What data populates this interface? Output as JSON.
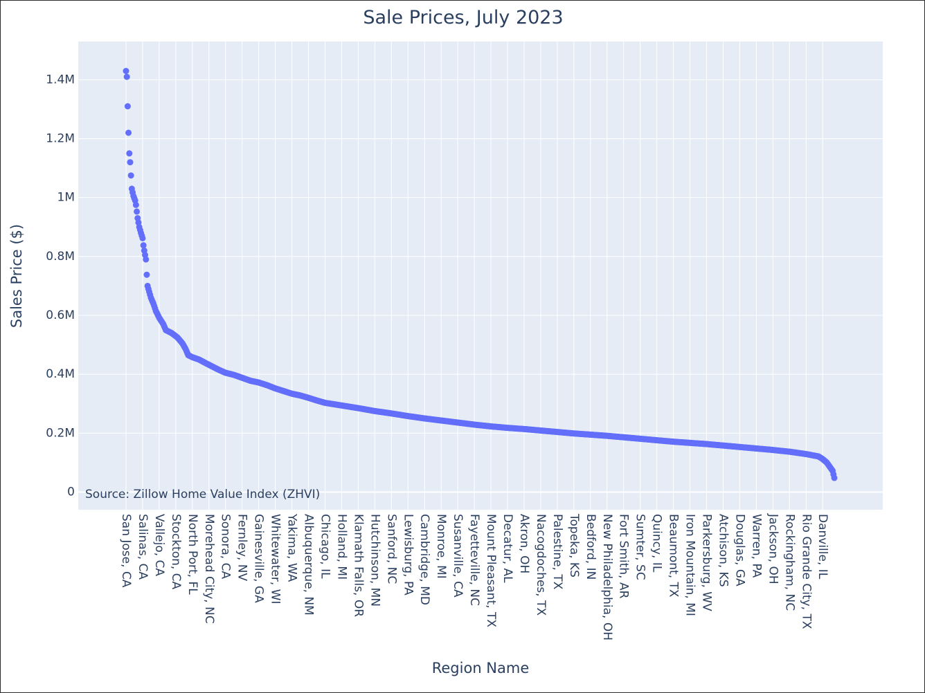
{
  "chart_data": {
    "type": "scatter",
    "title": "Sale Prices, July 2023",
    "xlabel": "Region Name",
    "ylabel": "Sales Price ($)",
    "ylim": [
      -60000,
      1530000
    ],
    "y_ticks": [
      {
        "value": 0,
        "label": "0"
      },
      {
        "value": 200000,
        "label": "0.2M"
      },
      {
        "value": 400000,
        "label": "0.4M"
      },
      {
        "value": 600000,
        "label": "0.6M"
      },
      {
        "value": 800000,
        "label": "0.8M"
      },
      {
        "value": 1000000,
        "label": "1M"
      },
      {
        "value": 1200000,
        "label": "1.2M"
      },
      {
        "value": 1400000,
        "label": "1.4M"
      }
    ],
    "x_tick_labels": [
      "San Jose, CA",
      "Salinas, CA",
      "Vallejo, CA",
      "Stockton, CA",
      "North Port, FL",
      "Morehead City, NC",
      "Sonora, CA",
      "Fernley, NV",
      "Gainesville, GA",
      "Whitewater, WI",
      "Yakima, WA",
      "Albuquerque, NM",
      "Chicago, IL",
      "Holland, MI",
      "Klamath Falls, OR",
      "Hutchinson, MN",
      "Sanford, NC",
      "Lewisburg, PA",
      "Cambridge, MD",
      "Monroe, MI",
      "Susanville, CA",
      "Fayetteville, NC",
      "Mount Pleasant, TX",
      "Decatur, AL",
      "Akron, OH",
      "Nacogdoches, TX",
      "Palestine, TX",
      "Topeka, KS",
      "Bedford, IN",
      "New Philadelphia, OH",
      "Fort Smith, AR",
      "Sumter, SC",
      "Quincy, IL",
      "Beaumont, TX",
      "Iron Mountain, MI",
      "Parkersburg, WV",
      "Atchison, KS",
      "Douglas, GA",
      "Warren, PA",
      "Jackson, OH",
      "Rockingham, NC",
      "Rio Grande City, TX",
      "Danville, IL"
    ],
    "x_tick_step": 20,
    "point_count": 855,
    "series": [
      {
        "marker_color": "#636efa",
        "curve_points": [
          [
            0,
            1430000
          ],
          [
            1,
            1410000
          ],
          [
            2,
            1310000
          ],
          [
            3,
            1220000
          ],
          [
            4,
            1150000
          ],
          [
            5,
            1120000
          ],
          [
            7,
            1030000
          ],
          [
            9,
            1005000
          ],
          [
            11,
            990000
          ],
          [
            12,
            975000
          ],
          [
            14,
            930000
          ],
          [
            16,
            900000
          ],
          [
            18,
            880000
          ],
          [
            20,
            862000
          ],
          [
            21,
            838000
          ],
          [
            22,
            820000
          ],
          [
            23,
            805000
          ],
          [
            24,
            790000
          ],
          [
            25,
            738000
          ],
          [
            26,
            700000
          ],
          [
            28,
            680000
          ],
          [
            30,
            660000
          ],
          [
            33,
            640000
          ],
          [
            36,
            615000
          ],
          [
            40,
            592000
          ],
          [
            45,
            570000
          ],
          [
            48,
            550000
          ],
          [
            55,
            540000
          ],
          [
            62,
            525000
          ],
          [
            68,
            505000
          ],
          [
            72,
            485000
          ],
          [
            75,
            465000
          ],
          [
            80,
            458000
          ],
          [
            88,
            450000
          ],
          [
            96,
            438000
          ],
          [
            105,
            425000
          ],
          [
            112,
            415000
          ],
          [
            120,
            405000
          ],
          [
            130,
            398000
          ],
          [
            140,
            388000
          ],
          [
            150,
            378000
          ],
          [
            160,
            372000
          ],
          [
            170,
            363000
          ],
          [
            180,
            352000
          ],
          [
            190,
            343000
          ],
          [
            200,
            334000
          ],
          [
            210,
            328000
          ],
          [
            220,
            320000
          ],
          [
            230,
            311000
          ],
          [
            240,
            303000
          ],
          [
            260,
            294000
          ],
          [
            280,
            285000
          ],
          [
            300,
            275000
          ],
          [
            320,
            267000
          ],
          [
            340,
            258000
          ],
          [
            360,
            250000
          ],
          [
            380,
            243000
          ],
          [
            400,
            236000
          ],
          [
            420,
            229000
          ],
          [
            440,
            223000
          ],
          [
            460,
            218000
          ],
          [
            480,
            214000
          ],
          [
            500,
            209000
          ],
          [
            520,
            204000
          ],
          [
            540,
            199000
          ],
          [
            560,
            195000
          ],
          [
            580,
            191000
          ],
          [
            600,
            186000
          ],
          [
            620,
            181000
          ],
          [
            640,
            176000
          ],
          [
            660,
            171000
          ],
          [
            680,
            167000
          ],
          [
            700,
            163000
          ],
          [
            720,
            158000
          ],
          [
            740,
            153000
          ],
          [
            760,
            148000
          ],
          [
            780,
            143000
          ],
          [
            800,
            137000
          ],
          [
            820,
            129000
          ],
          [
            835,
            121000
          ],
          [
            840,
            112000
          ],
          [
            845,
            100000
          ],
          [
            848,
            88000
          ],
          [
            850,
            80000
          ],
          [
            852,
            72000
          ],
          [
            853,
            60000
          ],
          [
            854,
            48000
          ]
        ]
      }
    ],
    "annotation": "Source: Zillow Home Value Index (ZHVI)",
    "grid": true,
    "legend": "none"
  }
}
